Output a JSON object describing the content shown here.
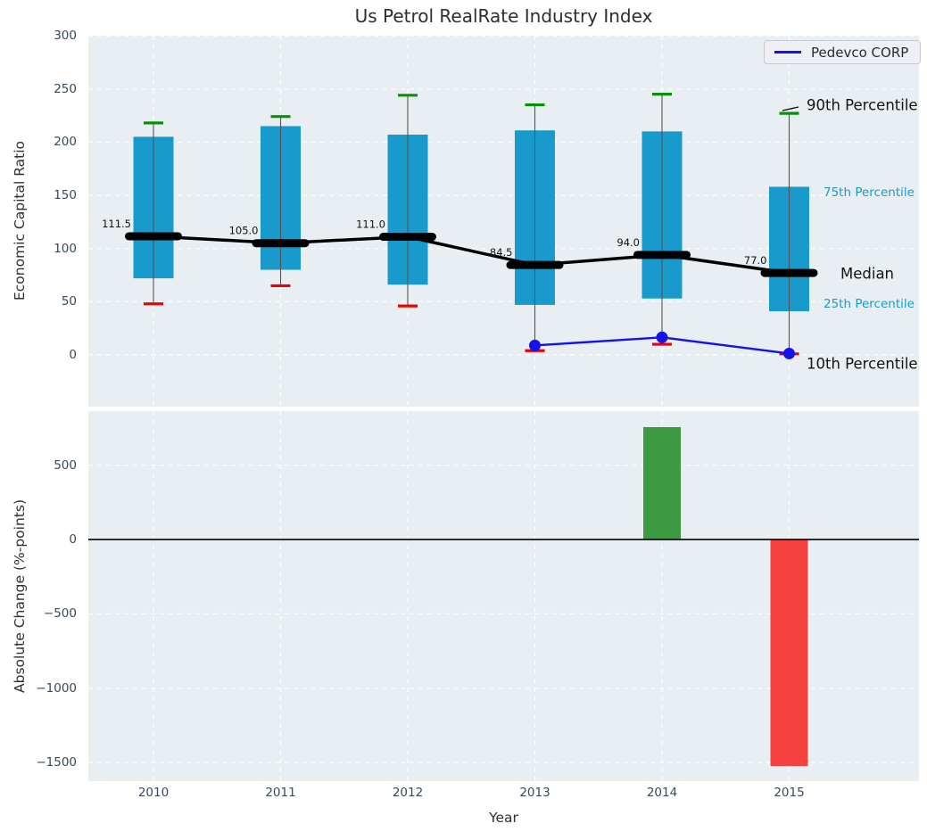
{
  "title": "Us Petrol RealRate Industry Index",
  "colors": {
    "box_fill": "#189acd",
    "whisker": "#555555",
    "cap_high": "#0a8f0a",
    "cap_low": "#ee0000",
    "median": "#000000",
    "company_line": "#1414e8",
    "bar_positive": "#3c9a40",
    "bar_negative": "#f54140",
    "axes_bg": "#e9eef2",
    "grid": "#ffffff",
    "tick_text": "#34495e",
    "annotation_dark": "#141414",
    "annotation_cyan": "#189acd",
    "legend_bg": "#eef0f5"
  },
  "chart_data": [
    {
      "type": "box",
      "title": "Us Petrol RealRate Industry Index",
      "ylabel": "Economic Capital Ratio",
      "categories": [
        "2010",
        "2011",
        "2012",
        "2013",
        "2014",
        "2015"
      ],
      "ylim": [
        -49,
        300
      ],
      "yticks": [
        300,
        250,
        200,
        150,
        100,
        50,
        0
      ],
      "grid": true,
      "legend_position": "upper right",
      "percentiles": {
        "p90": [
          218,
          224,
          244,
          235,
          245,
          227
        ],
        "p75": [
          205,
          215,
          207,
          211,
          210,
          158
        ],
        "median": [
          111.5,
          105.0,
          111.0,
          84.5,
          94.0,
          77.0
        ],
        "p25": [
          72,
          80,
          66,
          47,
          53,
          41
        ],
        "p10": [
          48,
          65,
          46,
          4,
          10,
          1
        ]
      },
      "median_labels": [
        "111.5",
        "105.0",
        "111.0",
        "84.5",
        "94.0",
        "77.0"
      ],
      "company_series": {
        "name": "Pedevco CORP",
        "x": [
          "2013",
          "2014",
          "2015"
        ],
        "values": [
          8.9,
          16.5,
          1.3
        ]
      },
      "annotations": [
        {
          "label": "90th Percentile",
          "color": "dark",
          "size": "large"
        },
        {
          "label": "75th Percentile",
          "color": "cyan",
          "size": "small"
        },
        {
          "label": "Median",
          "color": "dark",
          "size": "large"
        },
        {
          "label": "25th Percentile",
          "color": "cyan",
          "size": "small"
        },
        {
          "label": "10th Percentile",
          "color": "dark",
          "size": "large"
        }
      ]
    },
    {
      "type": "bar",
      "ylabel": "Absolute Change (%-points)",
      "xlabel": "Year",
      "categories": [
        "2010",
        "2011",
        "2012",
        "2013",
        "2014",
        "2015"
      ],
      "values": [
        null,
        null,
        null,
        null,
        756,
        -1524
      ],
      "ylim": [
        -1626,
        864
      ],
      "yticks": [
        500,
        0,
        -500,
        -1000,
        -1500
      ],
      "grid": true
    }
  ]
}
